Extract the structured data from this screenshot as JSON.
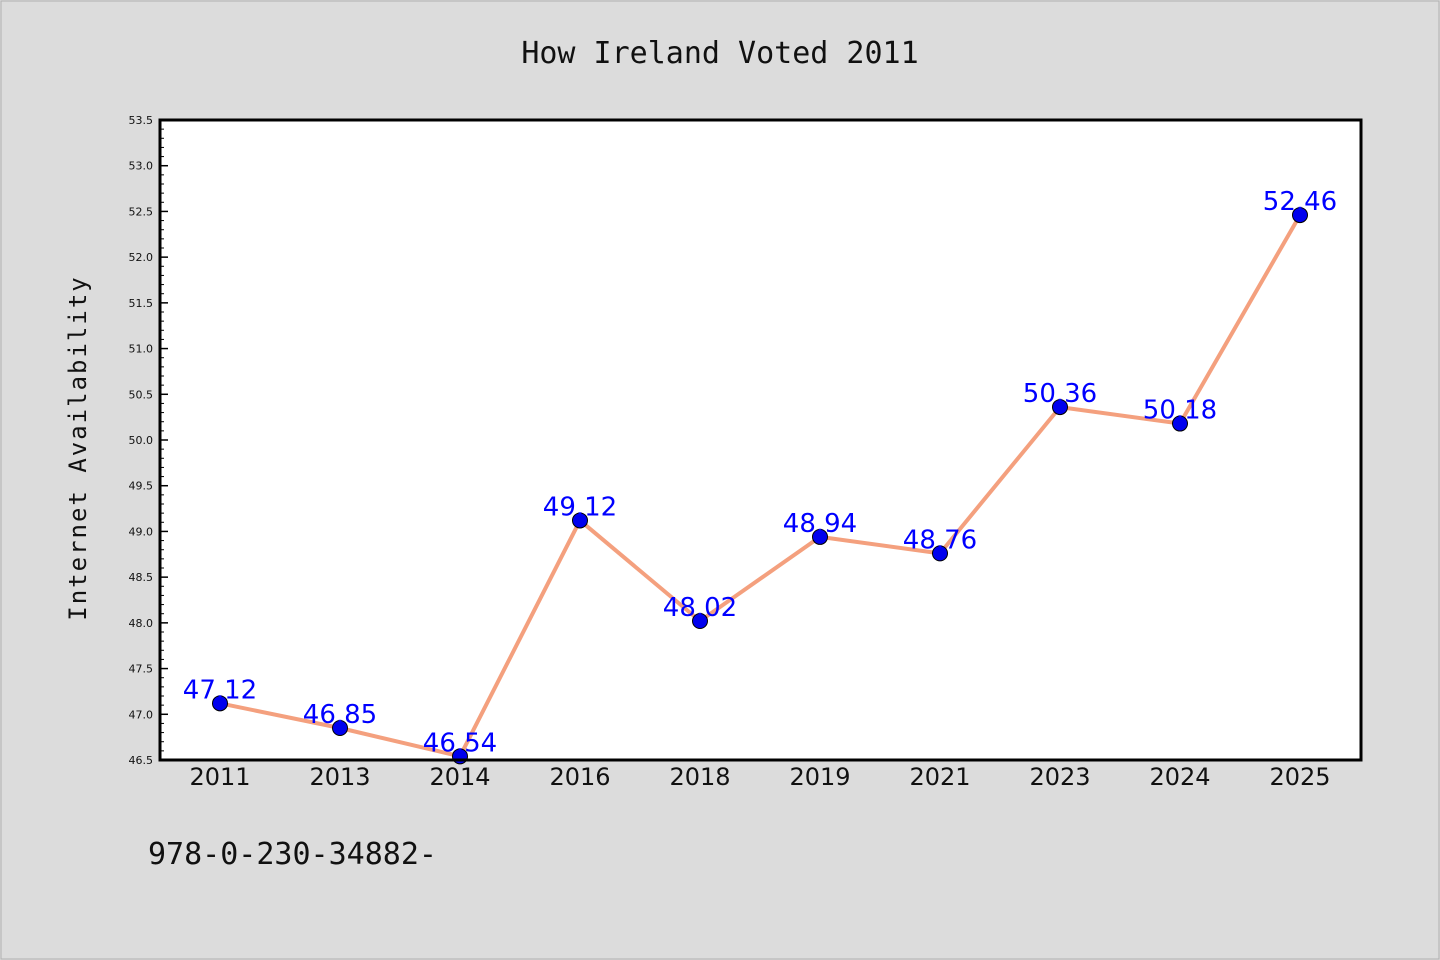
{
  "chart_data": {
    "type": "line",
    "title": "How Ireland Voted 2011",
    "xlabel": "",
    "ylabel": "Internet Availability",
    "categories": [
      "2011",
      "2013",
      "2014",
      "2016",
      "2018",
      "2019",
      "2021",
      "2023",
      "2024",
      "2025"
    ],
    "series": [
      {
        "values": [
          47.12,
          46.85,
          46.54,
          49.12,
          48.02,
          48.94,
          48.76,
          50.36,
          50.18,
          52.46
        ],
        "labels": [
          "47.12",
          "46.85",
          "46.54",
          "49.12",
          "48.02",
          "48.94",
          "48.76",
          "50.36",
          "50.18",
          "52.46"
        ],
        "line_color": "#f4a07e",
        "marker_color": "#0000ee"
      }
    ],
    "ylim": [
      46.5,
      53.5
    ],
    "yticks": [
      "46.5",
      "47.0",
      "47.5",
      "48.0",
      "48.5",
      "49.0",
      "49.5",
      "50.0",
      "50.5",
      "51.0",
      "51.5",
      "52.0",
      "52.5",
      "53.0",
      "53.5"
    ],
    "grid": false,
    "legend": "none",
    "label_color": "#0000ff"
  },
  "footer_text": "978-0-230-34882-",
  "colors": {
    "background": "#dcdcdc",
    "plot_background": "#ffffff",
    "axis": "#000000"
  }
}
